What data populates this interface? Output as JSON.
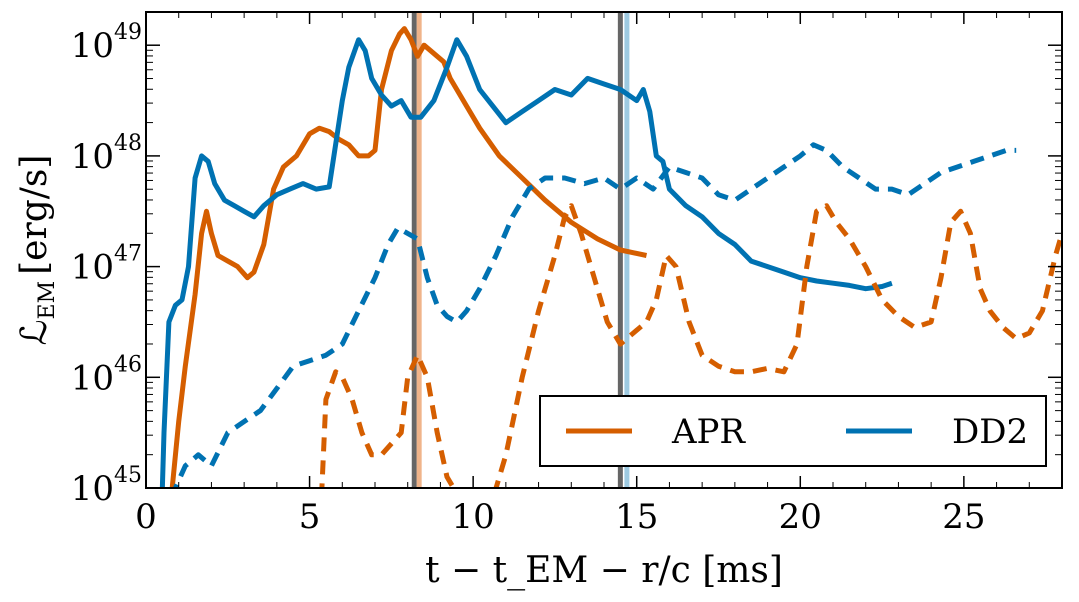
{
  "chart_data": {
    "type": "line",
    "title": "",
    "xlabel": "t − t_EM − r/c [ms]",
    "ylabel_main": "ℒ",
    "ylabel_sub": "EM",
    "ylabel_unit": "[erg/s]",
    "xlim": [
      0,
      28
    ],
    "ylim_log10": [
      45,
      49.3
    ],
    "yscale": "log",
    "xticks": [
      0,
      5,
      10,
      15,
      20,
      25
    ],
    "xtick_labels": [
      "0",
      "5",
      "10",
      "15",
      "20",
      "25"
    ],
    "yticks_log10": [
      45,
      46,
      47,
      48,
      49
    ],
    "ytick_base": "10",
    "ytick_exponents": [
      "45",
      "46",
      "47",
      "48",
      "49"
    ],
    "legend": {
      "placement": "lower-right",
      "entries": [
        {
          "label": "APR",
          "color": "#d55e00"
        },
        {
          "label": "DD2",
          "color": "#0072b2"
        }
      ]
    },
    "colors": {
      "APR": "#d55e00",
      "DD2": "#0072b2",
      "marker_gray": "#666666",
      "marker_apr_light": "#f0b48a",
      "marker_dd2_light": "#9ecae1"
    },
    "vertical_markers": [
      {
        "x": 8.2,
        "color": "#666666"
      },
      {
        "x": 8.35,
        "color": "#f0b48a"
      },
      {
        "x": 14.5,
        "color": "#666666"
      },
      {
        "x": 14.7,
        "color": "#9ecae1"
      }
    ],
    "series": [
      {
        "name": "APR",
        "style": "solid",
        "color": "#d55e00",
        "x": [
          0.6,
          0.8,
          1.0,
          1.2,
          1.5,
          1.7,
          1.85,
          2.0,
          2.2,
          2.5,
          2.8,
          3.1,
          3.3,
          3.6,
          3.9,
          4.2,
          4.6,
          5.0,
          5.3,
          5.6,
          5.9,
          6.2,
          6.5,
          6.8,
          7.0,
          7.2,
          7.5,
          7.75,
          7.9,
          8.1,
          8.3,
          8.5,
          8.7,
          8.9,
          9.1,
          9.3,
          9.5,
          9.8,
          10.2,
          10.8,
          11.5,
          12.2,
          13.0,
          13.8,
          14.5,
          15.3
        ],
        "y_log10": [
          44.5,
          45.0,
          45.6,
          46.1,
          46.75,
          47.3,
          47.5,
          47.3,
          47.1,
          47.05,
          47.0,
          46.9,
          46.95,
          47.2,
          47.7,
          47.9,
          48.0,
          48.2,
          48.25,
          48.22,
          48.15,
          48.1,
          48.0,
          48.0,
          48.05,
          48.6,
          48.95,
          49.1,
          49.15,
          49.05,
          48.9,
          49.0,
          48.95,
          48.9,
          48.85,
          48.7,
          48.6,
          48.45,
          48.25,
          48.0,
          47.8,
          47.6,
          47.4,
          47.25,
          47.15,
          47.1
        ]
      },
      {
        "name": "DD2",
        "style": "solid",
        "color": "#0072b2",
        "x": [
          0.45,
          0.55,
          0.7,
          0.9,
          1.1,
          1.3,
          1.5,
          1.7,
          1.9,
          2.1,
          2.4,
          2.7,
          3.0,
          3.3,
          3.6,
          4.0,
          4.4,
          4.8,
          5.2,
          5.6,
          6.0,
          6.2,
          6.5,
          6.7,
          6.9,
          7.2,
          7.5,
          7.8,
          8.1,
          8.4,
          8.8,
          9.2,
          9.5,
          9.8,
          10.2,
          10.6,
          11.0,
          11.5,
          12.0,
          12.5,
          13.0,
          13.5,
          14.0,
          14.5,
          15.0,
          15.2,
          15.4,
          15.6,
          15.8,
          16.0,
          16.5,
          17.0,
          17.5,
          18.0,
          18.5,
          19.0,
          19.5,
          20.0,
          20.5,
          21.0,
          21.5,
          22.0,
          22.5,
          22.8
        ],
        "y_log10": [
          44.5,
          45.5,
          46.5,
          46.65,
          46.7,
          47.0,
          47.8,
          48.0,
          47.95,
          47.75,
          47.6,
          47.55,
          47.5,
          47.45,
          47.55,
          47.65,
          47.7,
          47.75,
          47.7,
          47.72,
          48.5,
          48.8,
          49.05,
          48.95,
          48.7,
          48.55,
          48.45,
          48.5,
          48.35,
          48.35,
          48.5,
          48.8,
          49.05,
          48.9,
          48.6,
          48.45,
          48.3,
          48.4,
          48.5,
          48.6,
          48.55,
          48.7,
          48.65,
          48.6,
          48.5,
          48.6,
          48.4,
          48.0,
          47.95,
          47.7,
          47.55,
          47.45,
          47.3,
          47.2,
          47.05,
          47.0,
          46.95,
          46.9,
          46.87,
          46.85,
          46.83,
          46.8,
          46.82,
          46.85
        ]
      },
      {
        "name": "APR (dashed)",
        "style": "dashed",
        "color": "#d55e00",
        "x": [
          5.3,
          5.5,
          5.8,
          6.0,
          6.3,
          6.6,
          6.9,
          7.2,
          7.5,
          7.8,
          8.0,
          8.3,
          8.6,
          8.9,
          9.2,
          9.6,
          10.0,
          10.5,
          11.0,
          11.5,
          12.0,
          12.5,
          12.8,
          13.0,
          13.3,
          13.7,
          14.1,
          14.5,
          14.9,
          15.3,
          15.6,
          15.9,
          16.2,
          16.6,
          17.0,
          17.5,
          18.0,
          18.5,
          19.0,
          19.5,
          19.9,
          20.2,
          20.5,
          20.8,
          21.1,
          21.5,
          22.0,
          22.5,
          23.0,
          23.5,
          24.0,
          24.3,
          24.6,
          24.9,
          25.2,
          25.5,
          25.8,
          26.2,
          26.6,
          27.0,
          27.4,
          27.8,
          28.0
        ],
        "y_log10": [
          44.5,
          45.8,
          46.05,
          46.0,
          45.8,
          45.5,
          45.3,
          45.3,
          45.4,
          45.5,
          46.0,
          46.2,
          46.0,
          45.5,
          45.1,
          44.9,
          44.7,
          44.8,
          45.3,
          46.0,
          46.6,
          47.1,
          47.45,
          47.55,
          47.3,
          46.9,
          46.5,
          46.3,
          46.4,
          46.5,
          46.7,
          47.1,
          47.0,
          46.5,
          46.2,
          46.1,
          46.05,
          46.05,
          46.08,
          46.05,
          46.3,
          47.0,
          47.5,
          47.55,
          47.4,
          47.25,
          47.0,
          46.7,
          46.55,
          46.45,
          46.5,
          46.9,
          47.4,
          47.5,
          47.3,
          46.8,
          46.6,
          46.45,
          46.35,
          46.4,
          46.6,
          47.1,
          47.3
        ]
      },
      {
        "name": "DD2 (dashed)",
        "style": "dashed",
        "color": "#0072b2",
        "x": [
          0.6,
          0.9,
          1.2,
          1.6,
          2.0,
          2.5,
          3.0,
          3.5,
          4.0,
          4.5,
          5.0,
          5.5,
          6.0,
          6.5,
          7.0,
          7.4,
          7.7,
          8.0,
          8.3,
          8.6,
          8.9,
          9.2,
          9.5,
          9.8,
          10.2,
          10.7,
          11.2,
          11.7,
          12.2,
          12.8,
          13.4,
          14.0,
          14.5,
          15.0,
          15.5,
          16.0,
          16.5,
          17.0,
          17.5,
          18.0,
          18.5,
          19.0,
          19.5,
          20.0,
          20.4,
          20.8,
          21.3,
          21.8,
          22.3,
          22.8,
          23.3,
          23.8,
          24.3,
          24.8,
          25.3,
          25.8,
          26.3,
          26.6
        ],
        "y_log10": [
          44.5,
          45.0,
          45.2,
          45.3,
          45.2,
          45.5,
          45.6,
          45.7,
          45.9,
          46.1,
          46.15,
          46.2,
          46.3,
          46.6,
          46.9,
          47.2,
          47.35,
          47.3,
          47.25,
          46.9,
          46.65,
          46.55,
          46.5,
          46.6,
          46.8,
          47.1,
          47.45,
          47.7,
          47.8,
          47.8,
          47.75,
          47.8,
          47.7,
          47.8,
          47.7,
          47.9,
          47.85,
          47.8,
          47.65,
          47.6,
          47.7,
          47.8,
          47.9,
          48.0,
          48.1,
          48.05,
          47.9,
          47.8,
          47.7,
          47.7,
          47.65,
          47.75,
          47.85,
          47.9,
          47.95,
          48.0,
          48.05,
          48.05
        ]
      }
    ]
  }
}
